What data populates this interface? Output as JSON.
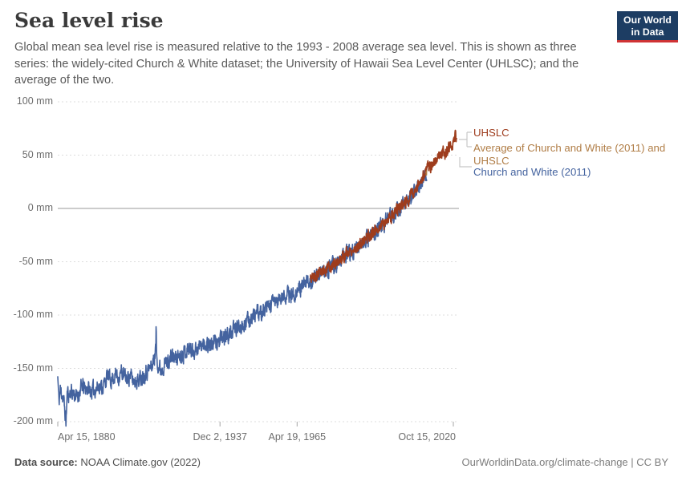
{
  "header": {
    "title": "Sea level rise",
    "subtitle": "Global mean sea level rise is measured relative to the 1993 - 2008 average sea level. This is shown as three series: the widely-cited Church & White dataset; the University of Hawaii Sea Level Center (UHLSC); and the average of the two.",
    "logo": {
      "line1": "Our World",
      "line2": "in Data"
    }
  },
  "footer": {
    "source_label": "Data source:",
    "source_text": " NOAA Climate.gov (2022)",
    "credit": "OurWorldinData.org/climate-change | CC BY"
  },
  "legend": [
    {
      "label": "UHSLC",
      "color": "#9E3C1D"
    },
    {
      "label": "Average of Church and White (2011) and UHSLC",
      "color": "#B07D46"
    },
    {
      "label": "Church and White (2011)",
      "color": "#44639F"
    }
  ],
  "chart_data": {
    "type": "line",
    "title": "Sea level rise",
    "unit": "mm",
    "xlabel": "",
    "ylabel": "",
    "grid": "dashed horizontal, zero line solid",
    "legend_position": "right",
    "x_range": [
      1880.29,
      2021.95
    ],
    "ylim": [
      -200,
      100
    ],
    "y_ticks": [
      {
        "value": 100,
        "label": "100 mm"
      },
      {
        "value": 50,
        "label": "50 mm"
      },
      {
        "value": 0,
        "label": "0 mm"
      },
      {
        "value": -50,
        "label": "-50 mm"
      },
      {
        "value": -100,
        "label": "-100 mm"
      },
      {
        "value": -150,
        "label": "-150 mm"
      },
      {
        "value": -200,
        "label": "-200 mm"
      }
    ],
    "x_ticks": [
      {
        "t": 1880.29,
        "label": "Apr 15, 1880",
        "align": "left"
      },
      {
        "t": 1937.92,
        "label": "Dec 2, 1937",
        "align": "center"
      },
      {
        "t": 1965.3,
        "label": "Apr 19, 1965",
        "align": "center"
      },
      {
        "t": 2020.79,
        "label": "Oct 15, 2020",
        "align": "right"
      }
    ],
    "series": [
      {
        "name": "Church and White (2011)",
        "color": "#44639F",
        "start": 1880.29,
        "end": 2011.33,
        "noise_amp_mm": 13,
        "seed": 11,
        "spikes": [
          [
            1915.25,
            24
          ],
          [
            1976.1,
            15
          ]
        ],
        "anchors": [
          [
            1880.29,
            -158
          ],
          [
            1880.7,
            -182
          ],
          [
            1881.2,
            -170
          ],
          [
            1881.8,
            -174
          ],
          [
            1882.4,
            -180
          ],
          [
            1883.2,
            -200
          ],
          [
            1883.7,
            -172
          ],
          [
            1884.3,
            -175
          ],
          [
            1885,
            -171
          ],
          [
            1886,
            -174
          ],
          [
            1887,
            -177
          ],
          [
            1888,
            -172
          ],
          [
            1889,
            -166
          ],
          [
            1890,
            -170
          ],
          [
            1891,
            -168
          ],
          [
            1892,
            -172
          ],
          [
            1893,
            -170
          ],
          [
            1894,
            -169
          ],
          [
            1895,
            -166
          ],
          [
            1896,
            -168
          ],
          [
            1897,
            -163
          ],
          [
            1898,
            -157
          ],
          [
            1899,
            -161
          ],
          [
            1900,
            -158
          ],
          [
            1901,
            -156
          ],
          [
            1902,
            -158
          ],
          [
            1903,
            -153
          ],
          [
            1904,
            -158
          ],
          [
            1905,
            -160
          ],
          [
            1906,
            -156
          ],
          [
            1907,
            -162
          ],
          [
            1908,
            -160
          ],
          [
            1909,
            -161
          ],
          [
            1910,
            -158
          ],
          [
            1911,
            -155
          ],
          [
            1912,
            -152
          ],
          [
            1913,
            -150
          ],
          [
            1914,
            -146
          ],
          [
            1915.2,
            -132
          ],
          [
            1916,
            -148
          ],
          [
            1917,
            -151
          ],
          [
            1918,
            -146
          ],
          [
            1919,
            -144
          ],
          [
            1920,
            -142
          ],
          [
            1921,
            -139
          ],
          [
            1922,
            -141
          ],
          [
            1923,
            -139
          ],
          [
            1924,
            -137
          ],
          [
            1925,
            -135
          ],
          [
            1926,
            -133
          ],
          [
            1927,
            -131
          ],
          [
            1928,
            -134
          ],
          [
            1929,
            -132
          ],
          [
            1930,
            -131
          ],
          [
            1931,
            -129
          ],
          [
            1932,
            -128
          ],
          [
            1933,
            -126
          ],
          [
            1934,
            -127
          ],
          [
            1935,
            -128
          ],
          [
            1936,
            -126
          ],
          [
            1937,
            -125
          ],
          [
            1938,
            -124
          ],
          [
            1939,
            -122
          ],
          [
            1940,
            -120
          ],
          [
            1941,
            -118
          ],
          [
            1942,
            -116
          ],
          [
            1943,
            -114
          ],
          [
            1944,
            -112
          ],
          [
            1945,
            -110
          ],
          [
            1946,
            -108
          ],
          [
            1947,
            -107
          ],
          [
            1948,
            -105
          ],
          [
            1949,
            -102
          ],
          [
            1950,
            -100
          ],
          [
            1951,
            -98
          ],
          [
            1952,
            -100
          ],
          [
            1953,
            -97
          ],
          [
            1954,
            -96
          ],
          [
            1955,
            -93
          ],
          [
            1956,
            -91
          ],
          [
            1957,
            -88
          ],
          [
            1958,
            -87
          ],
          [
            1959,
            -86
          ],
          [
            1960,
            -84
          ],
          [
            1961,
            -82
          ],
          [
            1962,
            -81
          ],
          [
            1963,
            -82
          ],
          [
            1964,
            -80
          ],
          [
            1965,
            -78
          ],
          [
            1966,
            -76
          ],
          [
            1967,
            -74
          ],
          [
            1968,
            -72
          ],
          [
            1969,
            -70
          ],
          [
            1970,
            -67
          ],
          [
            1971,
            -66
          ],
          [
            1972,
            -64
          ],
          [
            1973,
            -62
          ],
          [
            1974,
            -60
          ],
          [
            1975,
            -59
          ],
          [
            1976,
            -58
          ],
          [
            1977,
            -56
          ],
          [
            1978,
            -54
          ],
          [
            1979,
            -53
          ],
          [
            1980,
            -50
          ],
          [
            1981,
            -47
          ],
          [
            1982,
            -45
          ],
          [
            1983,
            -42
          ],
          [
            1984,
            -41
          ],
          [
            1985,
            -40
          ],
          [
            1986,
            -38
          ],
          [
            1987,
            -36
          ],
          [
            1988,
            -34
          ],
          [
            1989,
            -31
          ],
          [
            1990,
            -28
          ],
          [
            1991,
            -26
          ],
          [
            1992,
            -25
          ],
          [
            1993,
            -22
          ],
          [
            1994,
            -20
          ],
          [
            1995,
            -17
          ],
          [
            1996,
            -14
          ],
          [
            1997,
            -11
          ],
          [
            1998,
            -10
          ],
          [
            1999,
            -8
          ],
          [
            2000,
            -5
          ],
          [
            2001,
            -3
          ],
          [
            2002,
            0
          ],
          [
            2003,
            3
          ],
          [
            2004,
            6
          ],
          [
            2005,
            9
          ],
          [
            2006,
            12
          ],
          [
            2007,
            15
          ],
          [
            2008,
            18
          ],
          [
            2009,
            22
          ],
          [
            2010,
            28
          ],
          [
            2011.33,
            36
          ]
        ]
      },
      {
        "name": "UHSLC",
        "color": "#9E3C1D",
        "start": 1970.0,
        "end": 2021.95,
        "noise_amp_mm": 10,
        "seed": 5,
        "spikes": [],
        "anchors": [
          [
            1970,
            -66
          ],
          [
            1972,
            -63
          ],
          [
            1974,
            -59
          ],
          [
            1976,
            -57
          ],
          [
            1978,
            -53
          ],
          [
            1980,
            -49
          ],
          [
            1982,
            -44
          ],
          [
            1984,
            -40
          ],
          [
            1986,
            -37
          ],
          [
            1988,
            -33
          ],
          [
            1990,
            -27
          ],
          [
            1992,
            -24
          ],
          [
            1994,
            -19
          ],
          [
            1996,
            -13
          ],
          [
            1998,
            -9
          ],
          [
            2000,
            -4
          ],
          [
            2002,
            1
          ],
          [
            2004,
            7
          ],
          [
            2006,
            13
          ],
          [
            2008,
            19
          ],
          [
            2010,
            29
          ],
          [
            2011,
            34
          ],
          [
            2012,
            38
          ],
          [
            2013,
            41
          ],
          [
            2014,
            45
          ],
          [
            2015,
            48
          ],
          [
            2016,
            51
          ],
          [
            2017,
            53
          ],
          [
            2018,
            52
          ],
          [
            2019,
            56
          ],
          [
            2020,
            58
          ],
          [
            2021,
            64
          ],
          [
            2021.6,
            68
          ],
          [
            2021.95,
            63
          ]
        ]
      },
      {
        "name": "Average of Church and White (2011) and UHSLC",
        "color": "#B07D46",
        "derived": "average of the two series above over their overlap, following UHSLC afterwards",
        "start": 1970.0,
        "end": 2021.95
      }
    ]
  }
}
